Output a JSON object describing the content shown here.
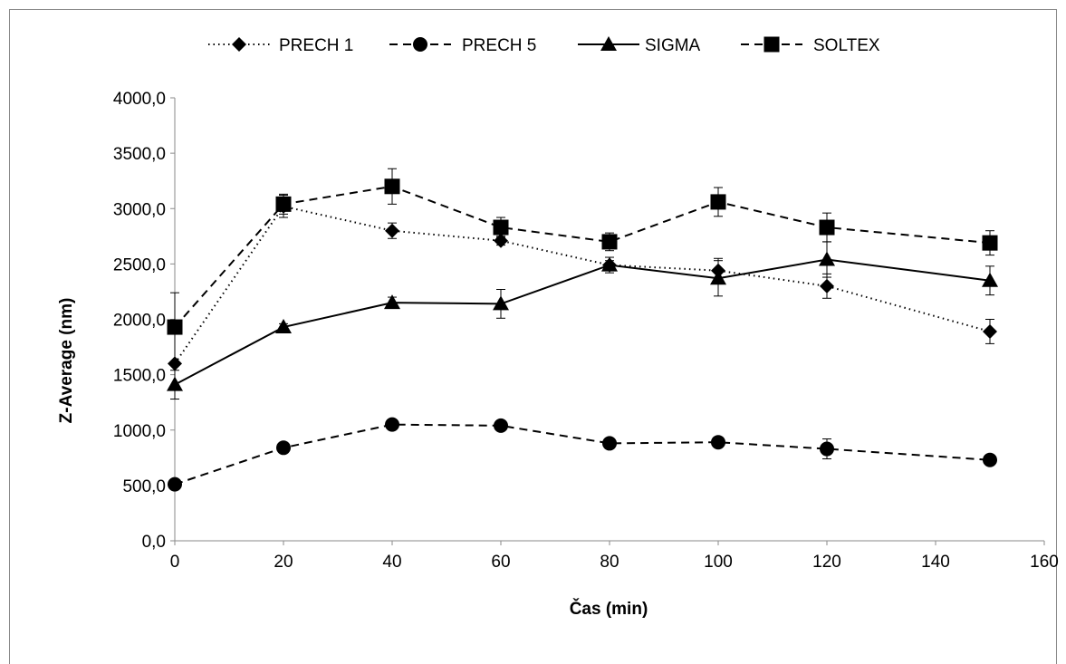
{
  "chart_data": {
    "type": "line",
    "title": "",
    "xlabel": "Čas (min)",
    "ylabel": "Z-Average (nm)",
    "xlim": [
      0,
      160
    ],
    "ylim": [
      0,
      4000
    ],
    "xticks": [
      "0",
      "20",
      "40",
      "60",
      "80",
      "100",
      "120",
      "140",
      "160"
    ],
    "yticks": [
      "0,0",
      "500,0",
      "1000,0",
      "1500,0",
      "2000,0",
      "2500,0",
      "3000,0",
      "3500,0",
      "4000,0"
    ],
    "grid": false,
    "legend_position": "top",
    "x": [
      0,
      20,
      40,
      60,
      80,
      100,
      120,
      150
    ],
    "series": [
      {
        "name": "PRECH 1",
        "marker": "diamond",
        "line": "dotted",
        "values": [
          1600,
          3020,
          2800,
          2710,
          2490,
          2440,
          2300,
          1890
        ],
        "errors": [
          0,
          100,
          70,
          40,
          40,
          110,
          110,
          110
        ]
      },
      {
        "name": "PRECH 5",
        "marker": "circle",
        "line": "dashed",
        "values": [
          510,
          840,
          1050,
          1040,
          880,
          890,
          830,
          730
        ],
        "errors": [
          0,
          30,
          30,
          30,
          30,
          30,
          90,
          30
        ]
      },
      {
        "name": "SIGMA",
        "marker": "triangle",
        "line": "solid",
        "values": [
          1410,
          1930,
          2150,
          2140,
          2490,
          2370,
          2540,
          2350
        ],
        "errors": [
          130,
          30,
          50,
          130,
          70,
          160,
          160,
          130
        ]
      },
      {
        "name": "SOLTEX",
        "marker": "square",
        "line": "dashed",
        "values": [
          1930,
          3040,
          3200,
          2830,
          2700,
          3060,
          2830,
          2690
        ],
        "errors": [
          310,
          90,
          160,
          90,
          80,
          130,
          130,
          110
        ]
      }
    ]
  }
}
